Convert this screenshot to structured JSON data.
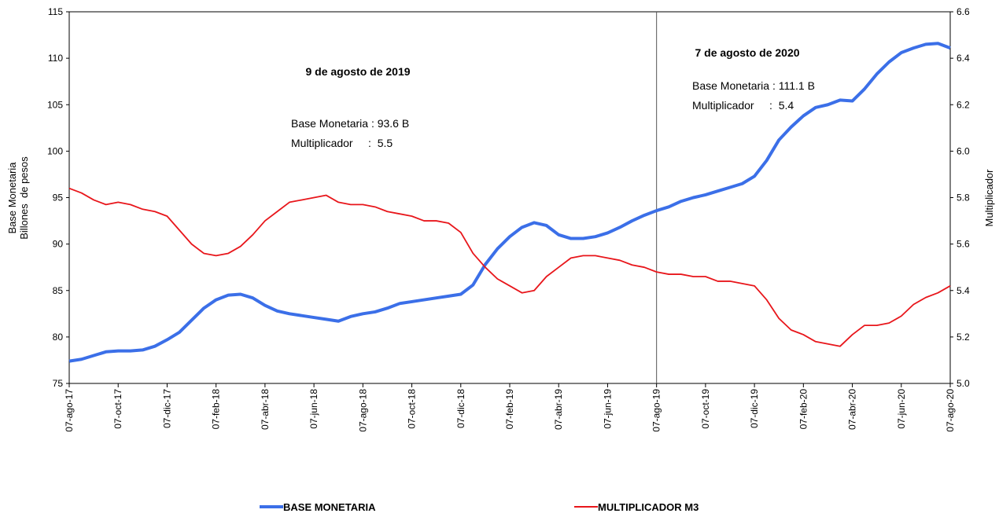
{
  "chart_data": {
    "type": "line",
    "y_label_lines": [
      "Base Monetaria",
      "Billones  de pesos"
    ],
    "y2_label": "Multiplicador",
    "annotations": [
      "9 de agosto de 2019",
      "Base Monetaria : 93.6 B",
      "Multiplicador     :  5.5",
      "7 de agosto de 2020",
      "Base Monetaria : 111.1 B",
      "Multiplicador     :  5.4"
    ],
    "categories": [
      "07-ago-17",
      null,
      null,
      null,
      "07-oct-17",
      null,
      null,
      null,
      "07-dic-17",
      null,
      null,
      null,
      "07-feb-18",
      null,
      null,
      null,
      "07-abr-18",
      null,
      null,
      null,
      "07-jun-18",
      null,
      null,
      null,
      "07-ago-18",
      null,
      null,
      null,
      "07-oct-18",
      null,
      null,
      null,
      "07-dic-18",
      null,
      null,
      null,
      "07-feb-19",
      null,
      null,
      null,
      "07-abr-19",
      null,
      null,
      null,
      "07-jun-19",
      null,
      null,
      null,
      "07-ago-19",
      null,
      null,
      null,
      "07-oct-19",
      null,
      null,
      null,
      "07-dic-19",
      null,
      null,
      null,
      "07-feb-20",
      null,
      null,
      null,
      "07-abr-20",
      null,
      null,
      null,
      "07-jun-20",
      null,
      null,
      null,
      "07-ago-20"
    ],
    "series": [
      {
        "name": "BASE MONETARIA",
        "color": "#3b6fe8",
        "axis": "y",
        "values": [
          77.4,
          77.6,
          78.0,
          78.4,
          78.5,
          78.5,
          78.6,
          79.0,
          79.7,
          80.5,
          81.8,
          83.1,
          84.0,
          84.5,
          84.6,
          84.2,
          83.4,
          82.8,
          82.5,
          82.3,
          82.1,
          81.9,
          81.7,
          82.2,
          82.5,
          82.7,
          83.1,
          83.6,
          83.8,
          84.0,
          84.2,
          84.4,
          84.6,
          85.6,
          87.8,
          89.5,
          90.8,
          91.8,
          92.3,
          92.0,
          91.0,
          90.6,
          90.6,
          90.8,
          91.2,
          91.8,
          92.5,
          93.1,
          93.6,
          94.0,
          94.6,
          95.0,
          95.3,
          95.7,
          96.1,
          96.5,
          97.3,
          99.0,
          101.2,
          102.6,
          103.8,
          104.7,
          105.0,
          105.5,
          105.4,
          106.7,
          108.3,
          109.6,
          110.6,
          111.1,
          111.5,
          111.6,
          111.1
        ]
      },
      {
        "name": "MULTIPLICADOR M3",
        "color": "#e8161b",
        "axis": "y2",
        "values": [
          5.84,
          5.82,
          5.79,
          5.77,
          5.78,
          5.77,
          5.75,
          5.74,
          5.72,
          5.66,
          5.6,
          5.56,
          5.55,
          5.56,
          5.59,
          5.64,
          5.7,
          5.74,
          5.78,
          5.79,
          5.8,
          5.81,
          5.78,
          5.77,
          5.77,
          5.76,
          5.74,
          5.73,
          5.72,
          5.7,
          5.7,
          5.69,
          5.65,
          5.56,
          5.5,
          5.45,
          5.42,
          5.39,
          5.4,
          5.46,
          5.5,
          5.54,
          5.55,
          5.55,
          5.54,
          5.53,
          5.51,
          5.5,
          5.48,
          5.47,
          5.47,
          5.46,
          5.46,
          5.44,
          5.44,
          5.43,
          5.42,
          5.36,
          5.28,
          5.23,
          5.21,
          5.18,
          5.17,
          5.16,
          5.21,
          5.25,
          5.25,
          5.26,
          5.29,
          5.34,
          5.37,
          5.39,
          5.42
        ]
      }
    ],
    "ylim": [
      75,
      115
    ],
    "yticks": [
      75,
      80,
      85,
      90,
      95,
      100,
      105,
      110,
      115
    ],
    "y2lim": [
      5,
      6.6
    ],
    "y2ticks": [
      {
        "value": 5,
        "label": "5.0"
      },
      5.2,
      5.4,
      5.6,
      5.8,
      {
        "value": 6,
        "label": "6.0"
      },
      6.2,
      6.4,
      6.6
    ]
  }
}
